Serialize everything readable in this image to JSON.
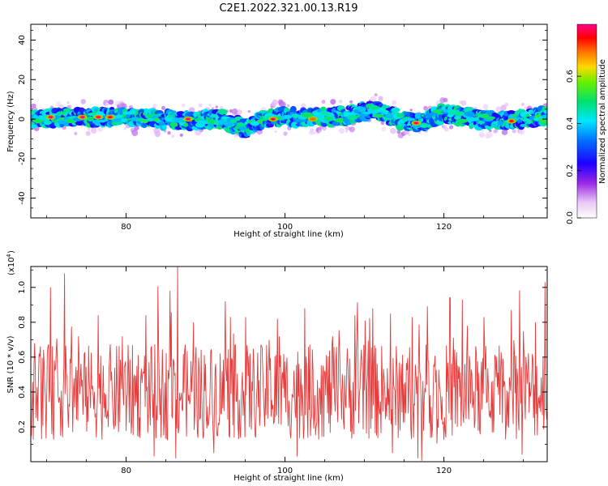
{
  "title": "C2E1.2022.321.00.13.R19",
  "chart_data": [
    {
      "type": "heatmap",
      "xlabel": "Height of straight line (km)",
      "ylabel": "Frequency (Hz)",
      "xlim": [
        68,
        133
      ],
      "ylim": [
        -50,
        48
      ],
      "xticks": [
        80,
        100,
        120
      ],
      "yticks": [
        -40,
        -20,
        0,
        20,
        40
      ],
      "colorbar": {
        "label": "Normalized spectral amplitude",
        "range": [
          0,
          0.7
        ],
        "ticks": [
          "0.0",
          "0.2",
          "0.4",
          "0.6"
        ]
      },
      "centerline": [
        [
          68,
          0
        ],
        [
          72,
          1
        ],
        [
          76,
          1
        ],
        [
          80,
          1
        ],
        [
          84,
          0
        ],
        [
          88,
          -1
        ],
        [
          92,
          0
        ],
        [
          95,
          -5
        ],
        [
          97,
          0
        ],
        [
          100,
          1
        ],
        [
          104,
          1
        ],
        [
          108,
          2
        ],
        [
          111,
          5
        ],
        [
          113,
          2
        ],
        [
          115,
          -1
        ],
        [
          117,
          -2
        ],
        [
          120,
          3
        ],
        [
          124,
          0
        ],
        [
          127,
          -1
        ],
        [
          130,
          0
        ],
        [
          133,
          2
        ]
      ],
      "band_halfwidth_hz": 4,
      "peaks": [
        {
          "x": 70.5,
          "y": 1,
          "amp": 0.75
        },
        {
          "x": 74.5,
          "y": 1,
          "amp": 0.72
        },
        {
          "x": 76.5,
          "y": 1,
          "amp": 0.7
        },
        {
          "x": 78,
          "y": 1,
          "amp": 0.68
        },
        {
          "x": 87.8,
          "y": 0,
          "amp": 0.72
        },
        {
          "x": 98.5,
          "y": 0,
          "amp": 0.68
        },
        {
          "x": 103.5,
          "y": 0,
          "amp": 0.6
        },
        {
          "x": 116.5,
          "y": -2,
          "amp": 0.7
        },
        {
          "x": 128.5,
          "y": -1,
          "amp": 0.65
        }
      ]
    },
    {
      "type": "line",
      "xlabel": "Height of straight line (km)",
      "ylabel": "SNR (10 * v/v)",
      "ymultiplier": "(x10^4)",
      "xlim": [
        68,
        133
      ],
      "ylim": [
        0,
        1.12
      ],
      "xticks": [
        80,
        100,
        120
      ],
      "yticks": [
        0.2,
        0.4,
        0.6,
        0.8,
        1.0
      ],
      "color": "#e53b3b",
      "x_step_km": 0.08,
      "baseline": 0.4,
      "peaks": [
        {
          "x": 69,
          "y": 0.62
        },
        {
          "x": 70.5,
          "y": 1.0
        },
        {
          "x": 72.2,
          "y": 1.08
        },
        {
          "x": 74,
          "y": 0.72
        },
        {
          "x": 76.5,
          "y": 0.84
        },
        {
          "x": 79.5,
          "y": 0.72
        },
        {
          "x": 82.5,
          "y": 0.84
        },
        {
          "x": 85.5,
          "y": 0.98
        },
        {
          "x": 86.5,
          "y": 1.12
        },
        {
          "x": 88.5,
          "y": 0.8
        },
        {
          "x": 92.5,
          "y": 0.92
        },
        {
          "x": 95,
          "y": 0.83
        },
        {
          "x": 99,
          "y": 0.82
        },
        {
          "x": 102.5,
          "y": 0.88
        },
        {
          "x": 106,
          "y": 0.72
        },
        {
          "x": 108.8,
          "y": 0.84
        },
        {
          "x": 111,
          "y": 0.88
        },
        {
          "x": 113.3,
          "y": 0.85
        },
        {
          "x": 116,
          "y": 0.83
        },
        {
          "x": 120.8,
          "y": 0.94
        },
        {
          "x": 122.3,
          "y": 0.93
        },
        {
          "x": 125,
          "y": 0.83
        },
        {
          "x": 128.5,
          "y": 0.87
        },
        {
          "x": 131.5,
          "y": 0.8
        },
        {
          "x": 132.7,
          "y": 1.03
        }
      ],
      "troughs": [
        {
          "x": 83.5,
          "y": 0.03
        },
        {
          "x": 86.2,
          "y": 0.02
        },
        {
          "x": 91,
          "y": 0.05
        },
        {
          "x": 101.5,
          "y": 0.03
        },
        {
          "x": 113.5,
          "y": 0.05
        },
        {
          "x": 116.7,
          "y": 0.02
        },
        {
          "x": 117.2,
          "y": 0.0
        },
        {
          "x": 129.8,
          "y": 0.04
        }
      ]
    }
  ]
}
